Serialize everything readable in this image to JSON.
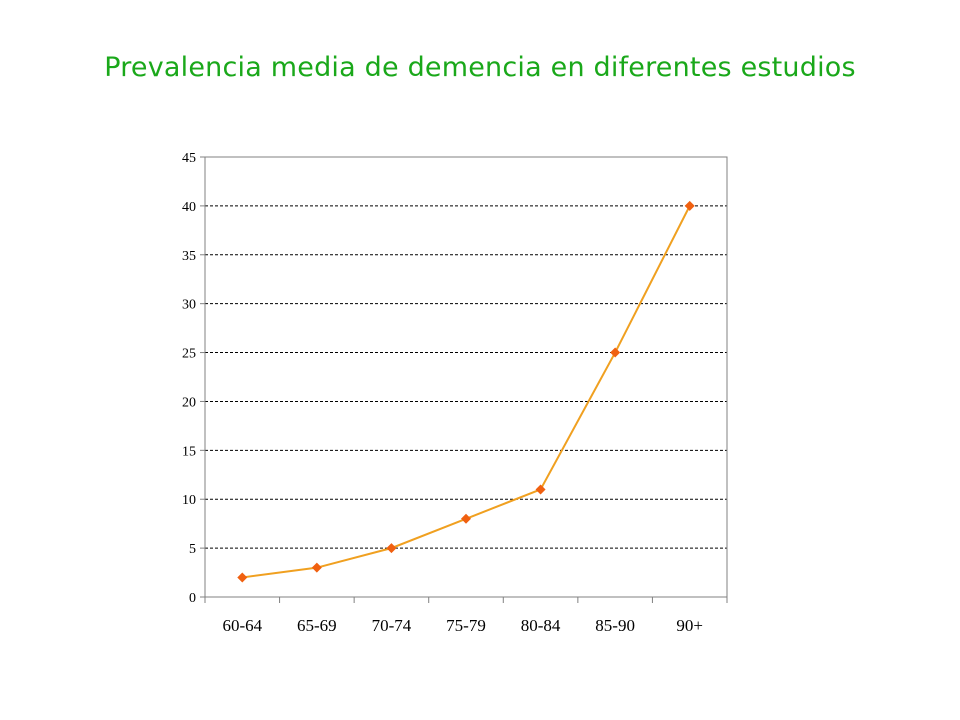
{
  "chart_data": {
    "type": "line",
    "title": "Prevalencia media de demencia en diferentes estudios",
    "xlabel": "",
    "ylabel": "",
    "categories": [
      "60-64",
      "65-69",
      "70-74",
      "75-79",
      "80-84",
      "85-90",
      "90+"
    ],
    "series": [
      {
        "values": [
          2,
          3,
          5,
          8,
          11,
          25,
          40
        ]
      }
    ],
    "ylim": [
      0,
      45
    ],
    "yticks": [
      "0",
      "5",
      "10",
      "15",
      "20",
      "25",
      "30",
      "35",
      "40",
      "45"
    ],
    "grid": "horizontal-dashed",
    "legend": "none",
    "colors": {
      "line": "#f0a020",
      "marker": "#f06010",
      "title": "#1aa81a"
    }
  }
}
